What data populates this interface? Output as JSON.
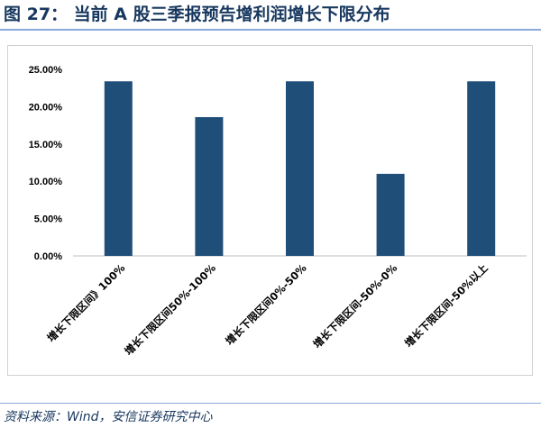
{
  "figure": {
    "title": "图 27：  当前 A 股三季报预告增利润增长下限分布",
    "source": "资料来源：Wind，安信证券研究中心"
  },
  "chart_data": {
    "type": "bar",
    "title": "",
    "xlabel": "",
    "ylabel": "",
    "categories": [
      "增长下限区间》100%",
      "增长下限区间50%-100%",
      "增长下限区间0%-50%",
      "增长下限区间-50%-0%",
      "增长下限区间-50%以上"
    ],
    "values": [
      23.4,
      18.6,
      23.4,
      11.0,
      23.4
    ],
    "yticks": [
      "0.00%",
      "5.00%",
      "10.00%",
      "15.00%",
      "20.00%",
      "25.00%"
    ],
    "ylim": [
      0,
      25
    ],
    "grid": false,
    "legend": "none",
    "bar_color": "#1f4e79"
  }
}
